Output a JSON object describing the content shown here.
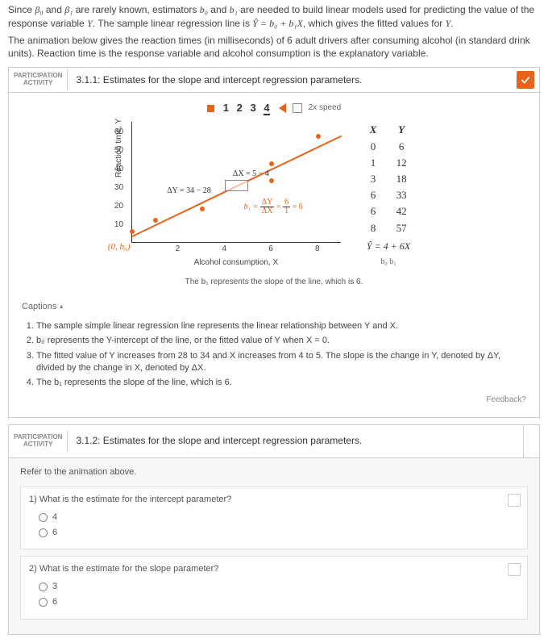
{
  "intro": {
    "line1_a": "Since ",
    "line1_b": " and ",
    "line1_c": " are rarely known, estimators ",
    "line1_d": " and ",
    "line1_e": " are needed to build linear models used for predicting the value of the response variable ",
    "line1_f": ". The sample linear regression line is ",
    "eq": "Ŷ = b₀ + b₁X",
    "line1_g": ", which gives the fitted values for ",
    "p0": "β₀",
    "p1": "β₁",
    "b0": "b₀",
    "b1": "b₁",
    "Y": "Y",
    "line2": "The animation below gives the reaction times (in milliseconds) of 6 adult drivers after consuming alcohol (in standard drink units). Reaction time is the response variable and alcohol consumption is the explanatory variable."
  },
  "activity1": {
    "tab1": "PARTICIPATION",
    "tab2": "ACTIVITY",
    "title": "3.1.1: Estimates for the slope and intercept regression parameters.",
    "steps": [
      "1",
      "2",
      "3",
      "4"
    ],
    "speed": "2x speed",
    "chart": {
      "ylabel": "Reaction time, Y",
      "xlabel": "Alcohol consumption, X",
      "yticks": [
        {
          "v": 10,
          "l": "10"
        },
        {
          "v": 20,
          "l": "20"
        },
        {
          "v": 30,
          "l": "30"
        },
        {
          "v": 40,
          "l": "40"
        },
        {
          "v": 50,
          "l": "50"
        },
        {
          "v": 60,
          "l": "60"
        }
      ],
      "xticks": [
        {
          "v": 2,
          "l": "2"
        },
        {
          "v": 4,
          "l": "4"
        },
        {
          "v": 6,
          "l": "6"
        },
        {
          "v": 8,
          "l": "8"
        }
      ],
      "ymax": 65,
      "xmax": 9,
      "origin": "(0, b₀)",
      "points": [
        {
          "x": 0,
          "y": 6
        },
        {
          "x": 1,
          "y": 12
        },
        {
          "x": 3,
          "y": 18
        },
        {
          "x": 6,
          "y": 33
        },
        {
          "x": 6,
          "y": 42
        },
        {
          "x": 8,
          "y": 57
        }
      ],
      "line": {
        "x0": 0,
        "y0": 4,
        "x1": 9,
        "y1": 58
      },
      "ann_dx": "ΔX = 5 − 4",
      "ann_dy": "ΔY = 34 − 28",
      "ann_b1_lhs": "b₁ =",
      "ann_b1_f1n": "ΔY",
      "ann_b1_f1d": "ΔX",
      "ann_b1_f2n": "6",
      "ann_b1_f2d": "1",
      "ann_b1_rhs": "= 6"
    },
    "table": {
      "hx": "X",
      "hy": "Y",
      "rows": [
        [
          "0",
          "6"
        ],
        [
          "1",
          "12"
        ],
        [
          "3",
          "18"
        ],
        [
          "6",
          "33"
        ],
        [
          "6",
          "42"
        ],
        [
          "8",
          "57"
        ]
      ],
      "eq": "Ŷ = 4 + 6X",
      "sub": "b₀   b₁"
    },
    "chart_caption": "The b₁ represents the slope of the line, which is 6.",
    "captions_label": "Captions",
    "captions": [
      "The sample simple linear regression line represents the linear relationship between Y and X.",
      "b₀ represents the Y-intercept of the line, or the fitted value of Y when X = 0.",
      "The fitted value of Y increases from 28 to 34 and X increases from 4 to 5. The slope is the change in Y, denoted by ΔY, divided by the change in X, denoted by ΔX.",
      "The b₁ represents the slope of the line, which is 6."
    ],
    "feedback": "Feedback?"
  },
  "activity2": {
    "tab1": "PARTICIPATION",
    "tab2": "ACTIVITY",
    "title": "3.1.2: Estimates for the slope and intercept regression parameters.",
    "refer": "Refer to the animation above.",
    "q1": {
      "num": "1)",
      "text": "What is the estimate for the intercept parameter?",
      "opts": [
        "4",
        "6"
      ]
    },
    "q2": {
      "num": "2)",
      "text": "What is the estimate for the slope parameter?",
      "opts": [
        "3",
        "6"
      ]
    }
  }
}
